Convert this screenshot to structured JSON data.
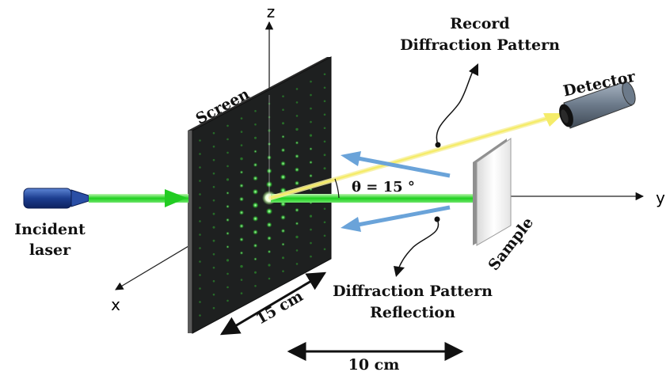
{
  "axes": {
    "x": "x",
    "y": "y",
    "z": "z"
  },
  "labels": {
    "incident": [
      "Incident",
      "laser"
    ],
    "screen": "Screen",
    "record": [
      "Record",
      "Diffraction Pattern"
    ],
    "detector": "Detector",
    "theta": "θ = 15 °",
    "sample": "Sample",
    "reflection": [
      "Diffraction Pattern",
      "Reflection"
    ],
    "dim_screen": "15 cm",
    "dim_distance": "10 cm"
  },
  "colors": {
    "laser_green": "#22cc22",
    "reflected_yellow": "#f5ec6a",
    "blue_arrow": "#6aa3d9",
    "screen_face": "#1e2020",
    "detector_body": "#6c7a8a"
  }
}
